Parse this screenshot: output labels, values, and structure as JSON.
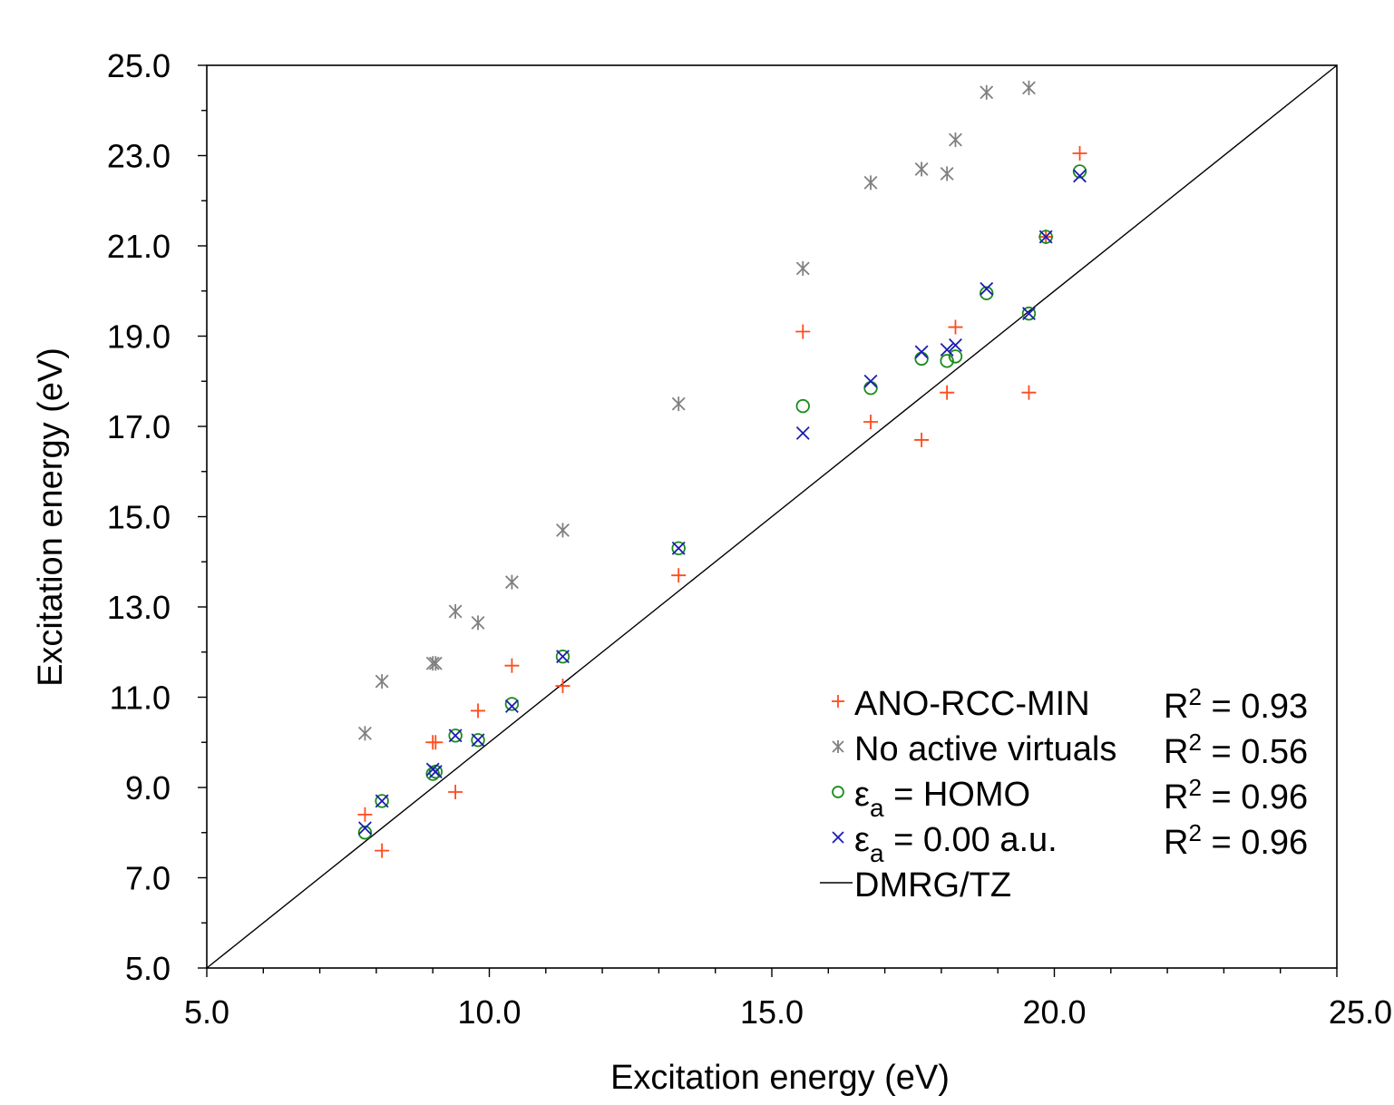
{
  "chart_data": {
    "type": "scatter",
    "xlabel": "Excitation energy (eV)",
    "ylabel": "Excitation energy (eV)",
    "xlim": [
      5.0,
      25.0
    ],
    "ylim": [
      5.0,
      25.0
    ],
    "xticks": [
      "5.0",
      "10.0",
      "15.0",
      "20.0",
      "25.0"
    ],
    "yticks": [
      "5.0",
      "7.0",
      "9.0",
      "11.0",
      "13.0",
      "15.0",
      "17.0",
      "19.0",
      "21.0",
      "23.0",
      "25.0"
    ],
    "x_minor_step": 1.0,
    "y_minor_step": 1.0,
    "grid": false,
    "legend_position": "bottom-right",
    "series": [
      {
        "name": "ANO-RCC-MIN",
        "marker": "plus",
        "color": "#ff4a1c",
        "r2_label": "R",
        "r2_exponent": "2",
        "r2_value": " = 0.93",
        "points": [
          [
            7.8,
            8.4
          ],
          [
            8.1,
            7.6
          ],
          [
            9.0,
            10.0
          ],
          [
            9.05,
            10.0
          ],
          [
            9.4,
            8.9
          ],
          [
            9.8,
            10.7
          ],
          [
            10.4,
            11.7
          ],
          [
            11.3,
            11.25
          ],
          [
            13.35,
            13.7
          ],
          [
            15.55,
            19.1
          ],
          [
            16.75,
            17.1
          ],
          [
            17.65,
            16.7
          ],
          [
            18.1,
            17.75
          ],
          [
            18.25,
            19.2
          ],
          [
            19.55,
            17.75
          ],
          [
            19.85,
            21.2
          ],
          [
            20.45,
            23.05
          ]
        ]
      },
      {
        "name": "No active virtuals",
        "marker": "asterisk",
        "color": "#808080",
        "r2_label": "R",
        "r2_exponent": "2",
        "r2_value": " = 0.56",
        "points": [
          [
            7.8,
            10.2
          ],
          [
            8.1,
            11.35
          ],
          [
            9.0,
            11.75
          ],
          [
            9.05,
            11.75
          ],
          [
            9.4,
            12.9
          ],
          [
            9.8,
            12.65
          ],
          [
            10.4,
            13.55
          ],
          [
            11.3,
            14.7
          ],
          [
            13.35,
            17.5
          ],
          [
            15.55,
            20.5
          ],
          [
            16.75,
            22.4
          ],
          [
            17.65,
            22.7
          ],
          [
            18.1,
            22.6
          ],
          [
            18.25,
            23.35
          ],
          [
            18.8,
            24.4
          ],
          [
            19.55,
            24.5
          ]
        ]
      },
      {
        "name": "HOMO",
        "prefix": "ε",
        "subscript": "a",
        "marker": "circle",
        "color": "#1a8c1a",
        "r2_label": "R",
        "r2_exponent": "2",
        "r2_value": " = 0.96",
        "points": [
          [
            7.8,
            8.0
          ],
          [
            8.1,
            8.7
          ],
          [
            9.0,
            9.3
          ],
          [
            9.05,
            9.35
          ],
          [
            9.4,
            10.15
          ],
          [
            9.8,
            10.05
          ],
          [
            10.4,
            10.85
          ],
          [
            11.3,
            11.9
          ],
          [
            13.35,
            14.3
          ],
          [
            15.55,
            17.45
          ],
          [
            16.75,
            17.85
          ],
          [
            17.65,
            18.5
          ],
          [
            18.1,
            18.45
          ],
          [
            18.25,
            18.55
          ],
          [
            18.8,
            19.95
          ],
          [
            19.55,
            19.5
          ],
          [
            19.85,
            21.2
          ],
          [
            20.45,
            22.65
          ]
        ]
      },
      {
        "name": "0.00 a.u.",
        "prefix": "ε",
        "subscript": "a",
        "marker": "cross",
        "color": "#1c1cb4",
        "r2_label": "R",
        "r2_exponent": "2",
        "r2_value": " = 0.96",
        "points": [
          [
            7.8,
            8.1
          ],
          [
            8.1,
            8.7
          ],
          [
            9.0,
            9.4
          ],
          [
            9.05,
            9.35
          ],
          [
            9.4,
            10.15
          ],
          [
            9.8,
            10.05
          ],
          [
            10.4,
            10.8
          ],
          [
            11.3,
            11.9
          ],
          [
            13.35,
            14.3
          ],
          [
            15.55,
            16.85
          ],
          [
            16.75,
            18.0
          ],
          [
            17.65,
            18.65
          ],
          [
            18.1,
            18.7
          ],
          [
            18.25,
            18.8
          ],
          [
            18.8,
            20.05
          ],
          [
            19.55,
            19.5
          ],
          [
            19.85,
            21.2
          ],
          [
            20.45,
            22.55
          ]
        ]
      },
      {
        "name": "DMRG/TZ",
        "marker": "line",
        "color": "#000000",
        "points": [
          [
            5.0,
            5.0
          ],
          [
            25.0,
            25.0
          ]
        ]
      }
    ]
  }
}
